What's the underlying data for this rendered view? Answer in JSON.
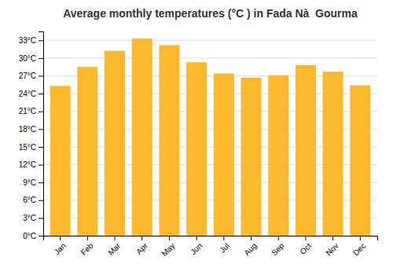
{
  "chart_data": {
    "type": "bar",
    "title": "Average monthly temperatures (°C ) in Fada Nà  Gourma",
    "categories": [
      "Jan",
      "Feb",
      "Mar",
      "Apr",
      "May",
      "Jun",
      "Jul",
      "Aug",
      "Sep",
      "Oct",
      "Nov",
      "Dec"
    ],
    "values": [
      25.3,
      28.5,
      31.2,
      33.3,
      32.2,
      29.3,
      27.4,
      26.7,
      27.1,
      28.8,
      27.7,
      25.4
    ],
    "color": "#FDB92E",
    "ylim": [
      0,
      34.5
    ],
    "yticks": [
      {
        "value": 0,
        "label": "0°C"
      },
      {
        "value": 3,
        "label": "3°C"
      },
      {
        "value": 6,
        "label": "6°C"
      },
      {
        "value": 9,
        "label": "9°C"
      },
      {
        "value": 12,
        "label": "12°C"
      },
      {
        "value": 15,
        "label": "15°C"
      },
      {
        "value": 18,
        "label": "18°C"
      },
      {
        "value": 21,
        "label": "21°C"
      },
      {
        "value": 24,
        "label": "24°C"
      },
      {
        "value": 27,
        "label": "27°C"
      },
      {
        "value": 30,
        "label": "30°C"
      },
      {
        "value": 33,
        "label": "33°C"
      }
    ],
    "grid": true
  }
}
